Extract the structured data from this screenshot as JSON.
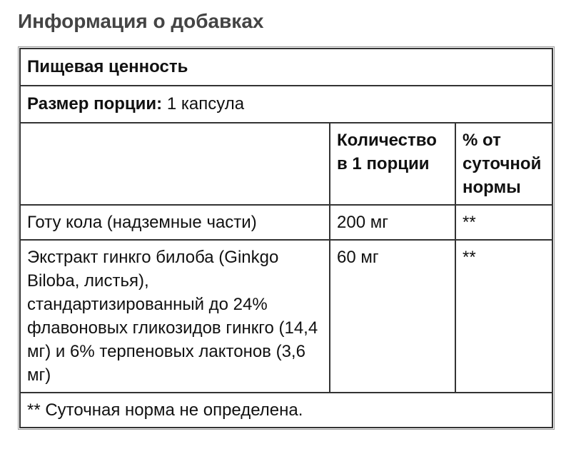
{
  "title": "Информация о добавках",
  "table": {
    "heading": "Пищевая ценность",
    "serving_label": "Размер порции:",
    "serving_value": " 1 капсула",
    "columns": [
      "",
      "Количество в 1 порции",
      "% от суточной нормы"
    ],
    "rows": [
      {
        "name": "Готу кола (надземные части)",
        "amount": "200 мг",
        "dv": "**"
      },
      {
        "name": "Экстракт гинкго билоба (Ginkgo Biloba, листья), стандартизированный до 24% флавоновых гликозидов гинкго (14,4 мг) и 6% терпеновых лактонов (3,6 мг)",
        "amount": "60 мг",
        "dv": "**"
      }
    ],
    "footnote": "** Суточная норма не определена."
  }
}
